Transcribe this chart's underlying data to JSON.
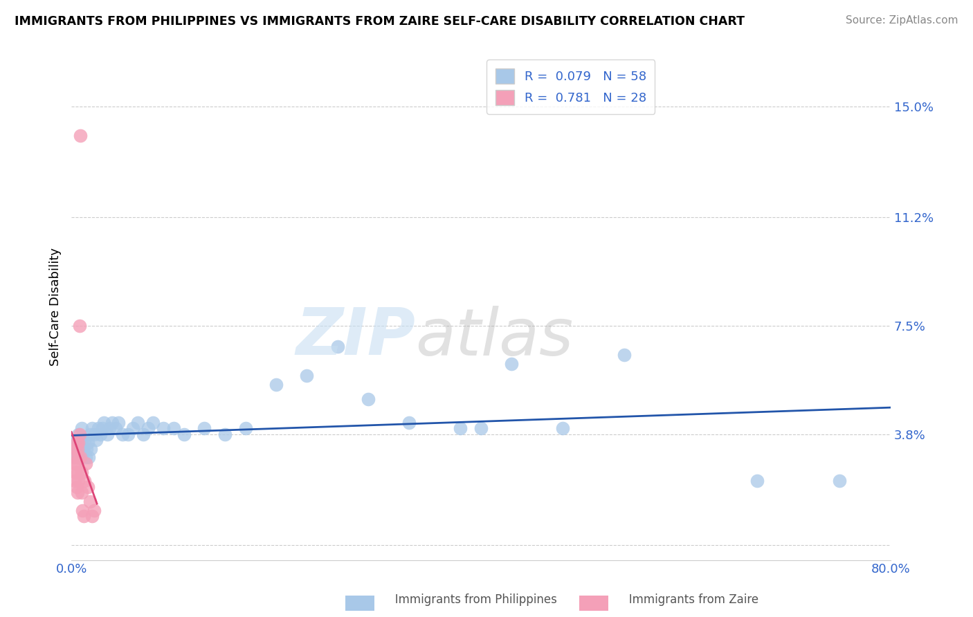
{
  "title": "IMMIGRANTS FROM PHILIPPINES VS IMMIGRANTS FROM ZAIRE SELF-CARE DISABILITY CORRELATION CHART",
  "source": "Source: ZipAtlas.com",
  "ylabel": "Self-Care Disability",
  "xlim": [
    0.0,
    0.8
  ],
  "ylim": [
    -0.005,
    0.168
  ],
  "yticks": [
    0.0,
    0.038,
    0.075,
    0.112,
    0.15
  ],
  "ytick_labels": [
    "",
    "3.8%",
    "7.5%",
    "11.2%",
    "15.0%"
  ],
  "xticks": [
    0.0,
    0.2,
    0.4,
    0.6,
    0.8
  ],
  "xtick_labels": [
    "0.0%",
    "",
    "",
    "",
    "80.0%"
  ],
  "philippines_R": 0.079,
  "philippines_N": 58,
  "zaire_R": 0.781,
  "zaire_N": 28,
  "philippines_color": "#a8c8e8",
  "zaire_color": "#f4a0b8",
  "philippines_line_color": "#2255aa",
  "zaire_line_color": "#dd4477",
  "philippines_x": [
    0.002,
    0.003,
    0.004,
    0.005,
    0.005,
    0.006,
    0.007,
    0.007,
    0.008,
    0.009,
    0.01,
    0.01,
    0.011,
    0.012,
    0.013,
    0.014,
    0.015,
    0.016,
    0.017,
    0.018,
    0.019,
    0.02,
    0.022,
    0.024,
    0.026,
    0.028,
    0.03,
    0.032,
    0.035,
    0.037,
    0.04,
    0.043,
    0.046,
    0.05,
    0.055,
    0.06,
    0.065,
    0.07,
    0.075,
    0.08,
    0.09,
    0.1,
    0.11,
    0.13,
    0.15,
    0.17,
    0.2,
    0.23,
    0.26,
    0.29,
    0.33,
    0.38,
    0.43,
    0.48,
    0.4,
    0.54,
    0.67,
    0.75
  ],
  "philippines_y": [
    0.033,
    0.03,
    0.035,
    0.032,
    0.036,
    0.03,
    0.032,
    0.038,
    0.033,
    0.03,
    0.035,
    0.04,
    0.033,
    0.032,
    0.036,
    0.03,
    0.033,
    0.035,
    0.03,
    0.038,
    0.033,
    0.04,
    0.038,
    0.036,
    0.04,
    0.038,
    0.04,
    0.042,
    0.038,
    0.04,
    0.042,
    0.04,
    0.042,
    0.038,
    0.038,
    0.04,
    0.042,
    0.038,
    0.04,
    0.042,
    0.04,
    0.04,
    0.038,
    0.04,
    0.038,
    0.04,
    0.055,
    0.058,
    0.068,
    0.05,
    0.042,
    0.04,
    0.062,
    0.04,
    0.04,
    0.065,
    0.022,
    0.022
  ],
  "zaire_x": [
    0.002,
    0.003,
    0.003,
    0.004,
    0.004,
    0.005,
    0.005,
    0.005,
    0.006,
    0.006,
    0.006,
    0.007,
    0.007,
    0.007,
    0.008,
    0.008,
    0.009,
    0.009,
    0.01,
    0.01,
    0.011,
    0.012,
    0.013,
    0.014,
    0.016,
    0.018,
    0.02,
    0.022
  ],
  "zaire_y": [
    0.03,
    0.028,
    0.022,
    0.033,
    0.025,
    0.035,
    0.028,
    0.02,
    0.033,
    0.025,
    0.018,
    0.035,
    0.03,
    0.022,
    0.075,
    0.038,
    0.14,
    0.03,
    0.025,
    0.018,
    0.012,
    0.01,
    0.022,
    0.028,
    0.02,
    0.015,
    0.01,
    0.012
  ]
}
